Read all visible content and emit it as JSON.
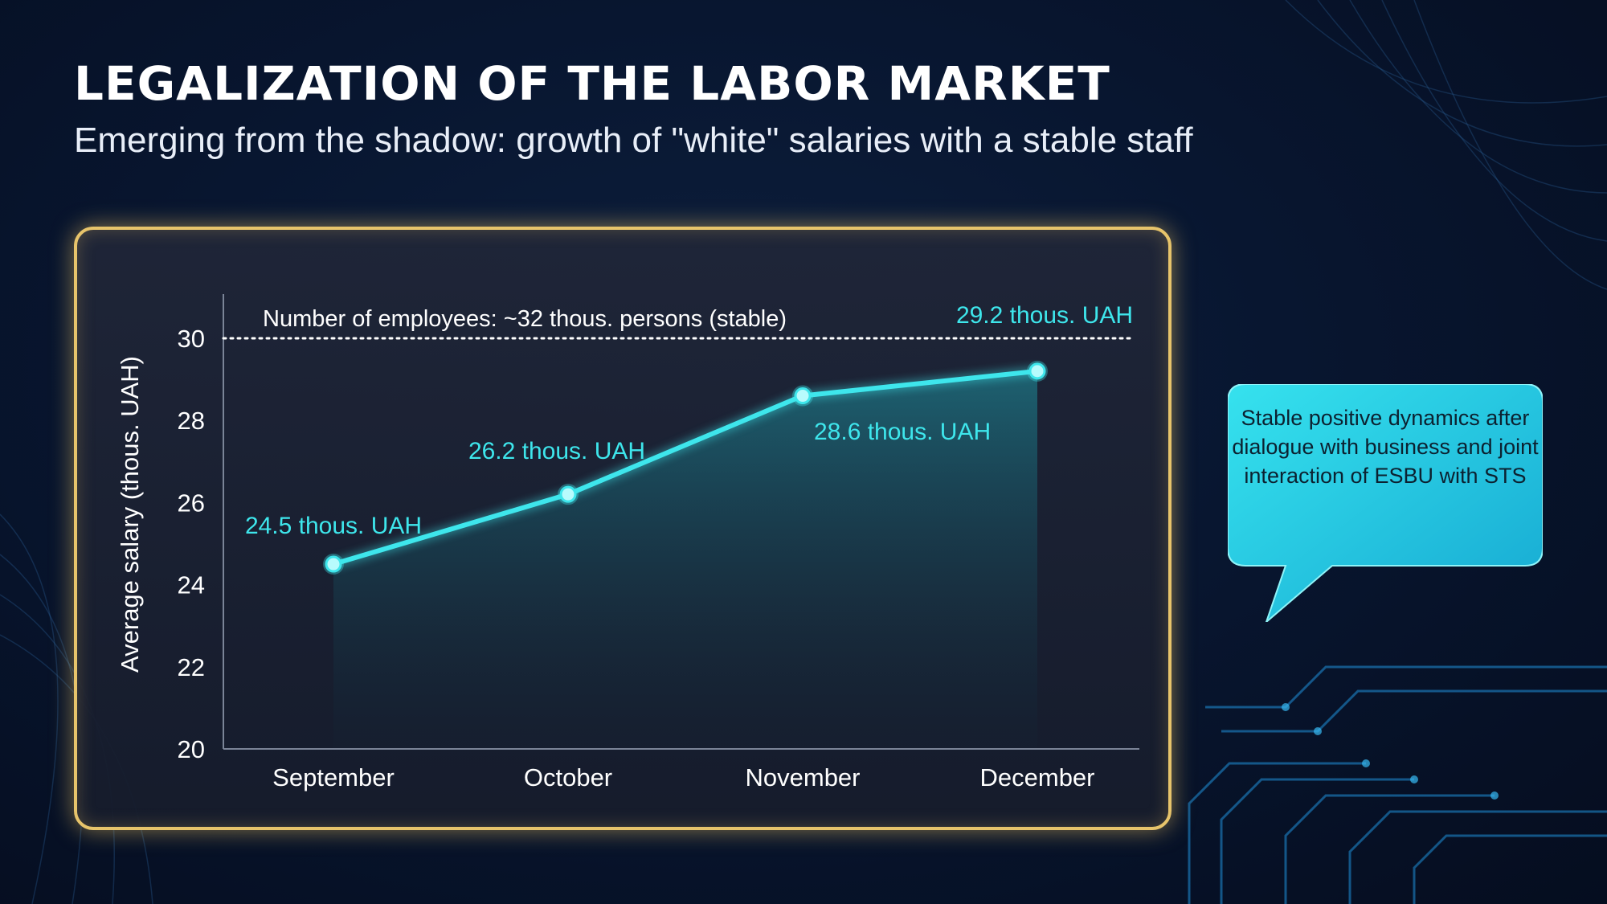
{
  "header": {
    "title": "LEGALIZATION OF THE LABOR MARKET",
    "subtitle": "Emerging from the shadow: growth of \"white\" salaries with a stable staff"
  },
  "callout": {
    "text": "Stable positive dynamics after dialogue with business and joint interaction of ESBU with STS"
  },
  "colors": {
    "accent": "#3ee6ec",
    "panel_border": "#e7c46b",
    "callout_bg": "#2ad3e4"
  },
  "chart_data": {
    "type": "line",
    "title": "",
    "xlabel": "",
    "ylabel": "Average salary (thous. UAH)",
    "categories": [
      "September",
      "October",
      "November",
      "December"
    ],
    "series": [
      {
        "values": [
          24.5,
          26.2,
          28.6,
          29.2
        ]
      }
    ],
    "data_labels": [
      "24.5 thous. UAH",
      "26.2 thous. UAH",
      "28.6 thous. UAH",
      "29.2 thous. UAH"
    ],
    "ylim": [
      20,
      30
    ],
    "yticks": [
      20,
      22,
      24,
      26,
      28,
      30
    ],
    "reference_line": {
      "value": 30,
      "label": "Number of employees: ~32 thous. persons (stable)"
    },
    "grid": false,
    "legend": "none"
  }
}
